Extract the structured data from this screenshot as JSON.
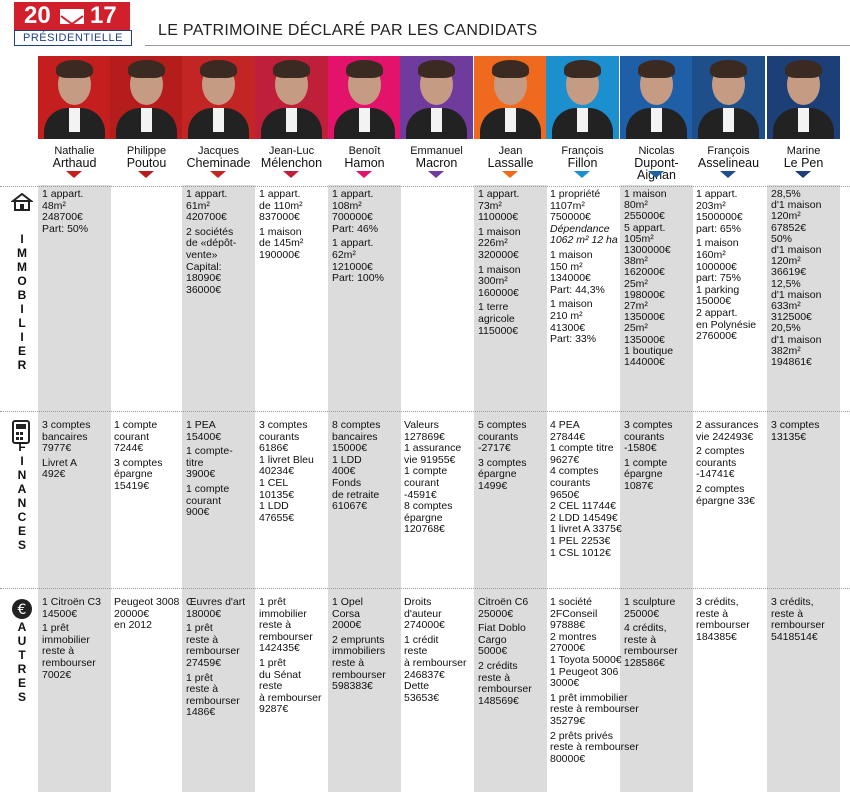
{
  "logo": {
    "year_left": "20",
    "year_right": "17",
    "subtitle": "PRÉSIDENTIELLE"
  },
  "title": "LE PATRIMOINE DÉCLARÉ PAR LES CANDIDATS",
  "colors": [
    "#c41e1e",
    "#b51c1c",
    "#c32424",
    "#c01f3a",
    "#e3126b",
    "#6f3b9c",
    "#ef6a1e",
    "#1c8fcf",
    "#1f5fa8",
    "#1e4f8a",
    "#1c3f78"
  ],
  "categories": [
    {
      "label": "IMMOBILIER",
      "icon": "house-icon"
    },
    {
      "label": "FINANCES",
      "icon": "calculator-icon"
    },
    {
      "label": "AUTRES",
      "icon": "euro-icon"
    }
  ],
  "candidates": [
    {
      "first": "Nathalie",
      "last": "Arthaud",
      "immobilier": [
        "1 appart.",
        "48m²",
        "248700€",
        "Part: 50%"
      ],
      "finances": [
        "3 comptes",
        "bancaires",
        "7977€",
        "|Livret A",
        "492€"
      ],
      "autres": [
        "1 Citroën C3",
        "14500€",
        "|1 prêt",
        "immobilier",
        "reste à",
        "rembourser",
        "7002€"
      ]
    },
    {
      "first": "Philippe",
      "last": "Poutou",
      "immobilier": [],
      "finances": [
        "1 compte",
        "courant",
        "7244€",
        "|3 comptes",
        "épargne",
        "15419€"
      ],
      "autres": [
        "Peugeot 3008",
        "20000€",
        "en 2012"
      ]
    },
    {
      "first": "Jacques",
      "last": "Cheminade",
      "immobilier": [
        "1 appart.",
        "61m²",
        "420700€",
        "|2 sociétés",
        "de «dépôt-",
        "vente»",
        "Capital:",
        "18090€",
        "36000€"
      ],
      "finances": [
        "1 PEA",
        "15400€",
        "|1 compte-",
        "titre",
        "3900€",
        "|1 compte",
        "courant",
        "900€"
      ],
      "autres": [
        "Œuvres d'art",
        "18000€",
        "|1 prêt",
        "reste à",
        "rembourser",
        "27459€",
        "|1 prêt",
        "reste à",
        "rembourser",
        "1486€"
      ]
    },
    {
      "first": "Jean-Luc",
      "last": "Mélenchon",
      "immobilier": [
        "1 appart.",
        "de 110m²",
        "837000€",
        "|1 maison",
        "de 145m²",
        "190000€"
      ],
      "finances": [
        "3 comptes",
        "courants",
        "6186€",
        "1 livret Bleu",
        "40234€",
        "1 CEL",
        "10135€",
        "1 LDD",
        "47655€"
      ],
      "autres": [
        "1 prêt",
        "immobilier",
        "reste à",
        "rembourser",
        "142435€",
        "|1 prêt",
        "du Sénat",
        "reste",
        "à rembourser",
        "9287€"
      ]
    },
    {
      "first": "Benoît",
      "last": "Hamon",
      "immobilier": [
        "1 appart.",
        "108m²",
        "700000€",
        "Part: 46%",
        "|1 appart.",
        "62m²",
        "121000€",
        "Part: 100%"
      ],
      "finances": [
        "8 comptes",
        "bancaires",
        "15000€",
        "1 LDD",
        "400€",
        "Fonds",
        "de retraite",
        "61067€"
      ],
      "autres": [
        "1 Opel",
        "Corsa",
        "2000€",
        "|2 emprunts",
        "immobiliers",
        "reste à",
        "rembourser",
        "598383€"
      ]
    },
    {
      "first": "Emmanuel",
      "last": "Macron",
      "immobilier": [],
      "finances": [
        "Valeurs",
        "127869€",
        "1 assurance",
        "vie 91955€",
        "1 compte",
        "courant",
        "-4591€",
        "8 comptes",
        "épargne",
        "120768€"
      ],
      "autres": [
        "Droits",
        "d'auteur",
        "274000€",
        "|1 crédit",
        "reste",
        "à rembourser",
        "246837€",
        "Dette",
        "53653€"
      ]
    },
    {
      "first": "Jean",
      "last": "Lassalle",
      "immobilier": [
        "1 appart.",
        "73m²",
        "110000€",
        "|1 maison",
        "226m²",
        "320000€",
        "|1 maison",
        "300m²",
        "160000€",
        "|1 terre",
        "agricole",
        "115000€"
      ],
      "finances": [
        "5 comptes",
        "courants",
        "-2717€",
        "|3 comptes",
        "épargne",
        "1499€"
      ],
      "autres": [
        "Citroën C6",
        "25000€",
        "|Fiat Doblo",
        "Cargo",
        "5000€",
        "|2 crédits",
        "reste à",
        "rembourser",
        "148569€"
      ]
    },
    {
      "first": "François",
      "last": "Fillon",
      "immobilier": [
        "1 propriété",
        "1107m²",
        "750000€",
        "Dépendance",
        "1062 m² 12 ha",
        "|1 maison",
        "150 m²",
        "134000€",
        "Part: 44,3%",
        "|1 maison",
        "210 m²",
        "41300€",
        "Part: 33%"
      ],
      "finances": [
        "4 PEA",
        "27844€",
        "1 compte titre",
        "9627€",
        "4 comptes",
        "courants",
        "9650€",
        "2 CEL 11744€",
        "2 LDD 14549€",
        "1 livret A 3375€",
        "1 PEL 2253€",
        "1 CSL 1012€"
      ],
      "autres": [
        "1 société",
        "2FConseil",
        "97888€",
        "2 montres",
        "27000€",
        "1 Toyota 5000€",
        "1 Peugeot 306",
        "3000€",
        "|1 prêt immobilier",
        "reste à rembourser",
        "35279€",
        "|2 prêts privés",
        "reste à rembourser",
        "80000€"
      ]
    },
    {
      "first": "Nicolas",
      "last": "Dupont-Aignan",
      "immobilier": [
        "1 maison",
        "80m²",
        "255000€",
        "5 appart.",
        "105m²",
        "1300000€",
        "38m²",
        "162000€",
        "25m²",
        "198000€",
        "27m²",
        "135000€",
        "25m²",
        "135000€",
        "1 boutique",
        "144000€"
      ],
      "finances": [
        "3 comptes",
        "courants",
        "-1580€",
        "|1 compte",
        "épargne",
        "1087€"
      ],
      "autres": [
        "1 sculpture",
        "25000€",
        "|4 crédits,",
        "reste à",
        "rembourser",
        "128586€"
      ]
    },
    {
      "first": "François",
      "last": "Asselineau",
      "immobilier": [
        "1 appart.",
        "203m²",
        "1500000€",
        "part: 65%",
        "|1 maison",
        "160m²",
        "100000€",
        "part: 75%",
        "1 parking",
        "15000€",
        "2 appart.",
        "en Polynésie",
        "276000€"
      ],
      "finances": [
        "2 assurances",
        "vie 242493€",
        "|2 comptes",
        "courants",
        "-14741€",
        "|2 comptes",
        "épargne 33€"
      ],
      "autres": [
        "3 crédits,",
        "reste à",
        "rembourser",
        "184385€"
      ]
    },
    {
      "first": "Marine",
      "last": "Le Pen",
      "immobilier": [
        "28,5%",
        "d'1 maison",
        "120m²",
        "67852€",
        "50%",
        "d'1 maison",
        "120m²",
        "36619€",
        "12,5%",
        "d'1 maison",
        "633m²",
        "312500€",
        "20,5%",
        "d'1 maison",
        "382m²",
        "194861€"
      ],
      "finances": [
        "3 comptes",
        "13135€"
      ],
      "autres": [
        "3 crédits,",
        "reste à",
        "rembourser",
        "5418514€"
      ]
    }
  ]
}
